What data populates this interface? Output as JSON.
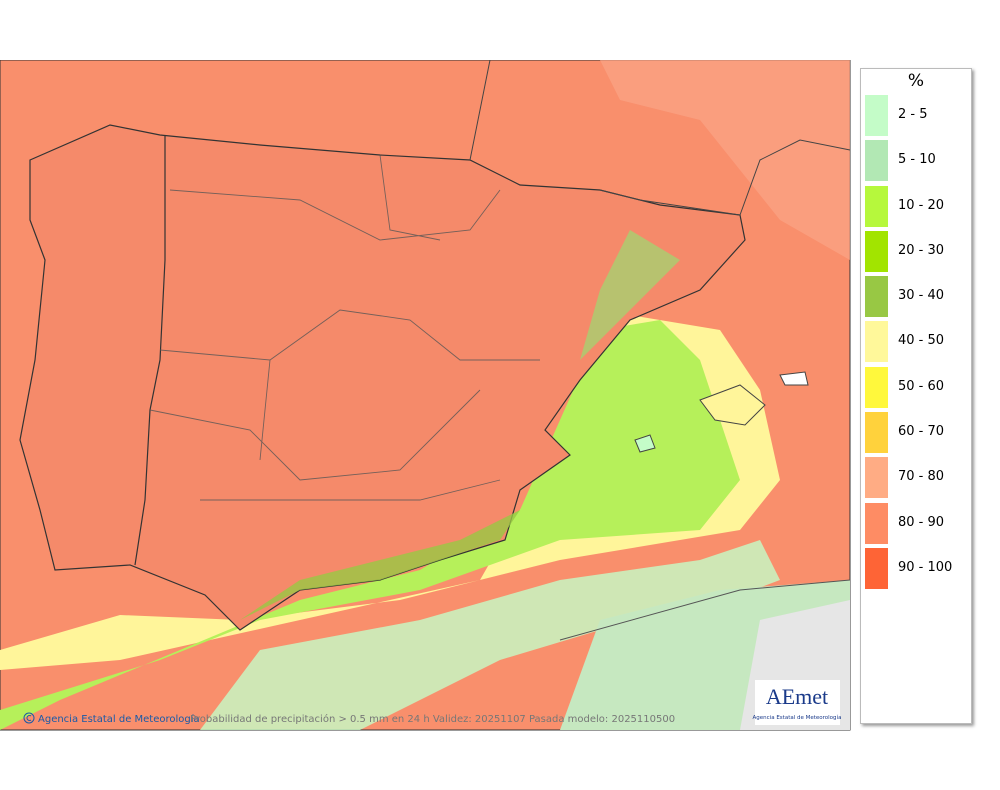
{
  "legend": {
    "unit": "%",
    "items": [
      {
        "label": "2 - 5",
        "color": "#c4fcc8"
      },
      {
        "label": "5 - 10",
        "color": "#b2e8b4"
      },
      {
        "label": "10 - 20",
        "color": "#b6f83c"
      },
      {
        "label": "20 - 30",
        "color": "#a2e400"
      },
      {
        "label": "30 - 40",
        "color": "#98c844"
      },
      {
        "label": "40 - 50",
        "color": "#fff89a"
      },
      {
        "label": "50 - 60",
        "color": "#fff83c"
      },
      {
        "label": "60 - 70",
        "color": "#ffd23c"
      },
      {
        "label": "70 - 80",
        "color": "#ffac84"
      },
      {
        "label": "80 - 90",
        "color": "#fe8c64"
      },
      {
        "label": "90 - 100",
        "color": "#fe6436"
      }
    ]
  },
  "footer": {
    "credit": "Agencia Estatal de Meteorología",
    "caption": "Probabilidad de precipitación > 0.5 mm en 24 h Validez: 20251107 Pasada modelo: 2025110500"
  },
  "logo": {
    "name": "AEmet",
    "subtitle": "Agencia Estatal de Meteorología"
  }
}
